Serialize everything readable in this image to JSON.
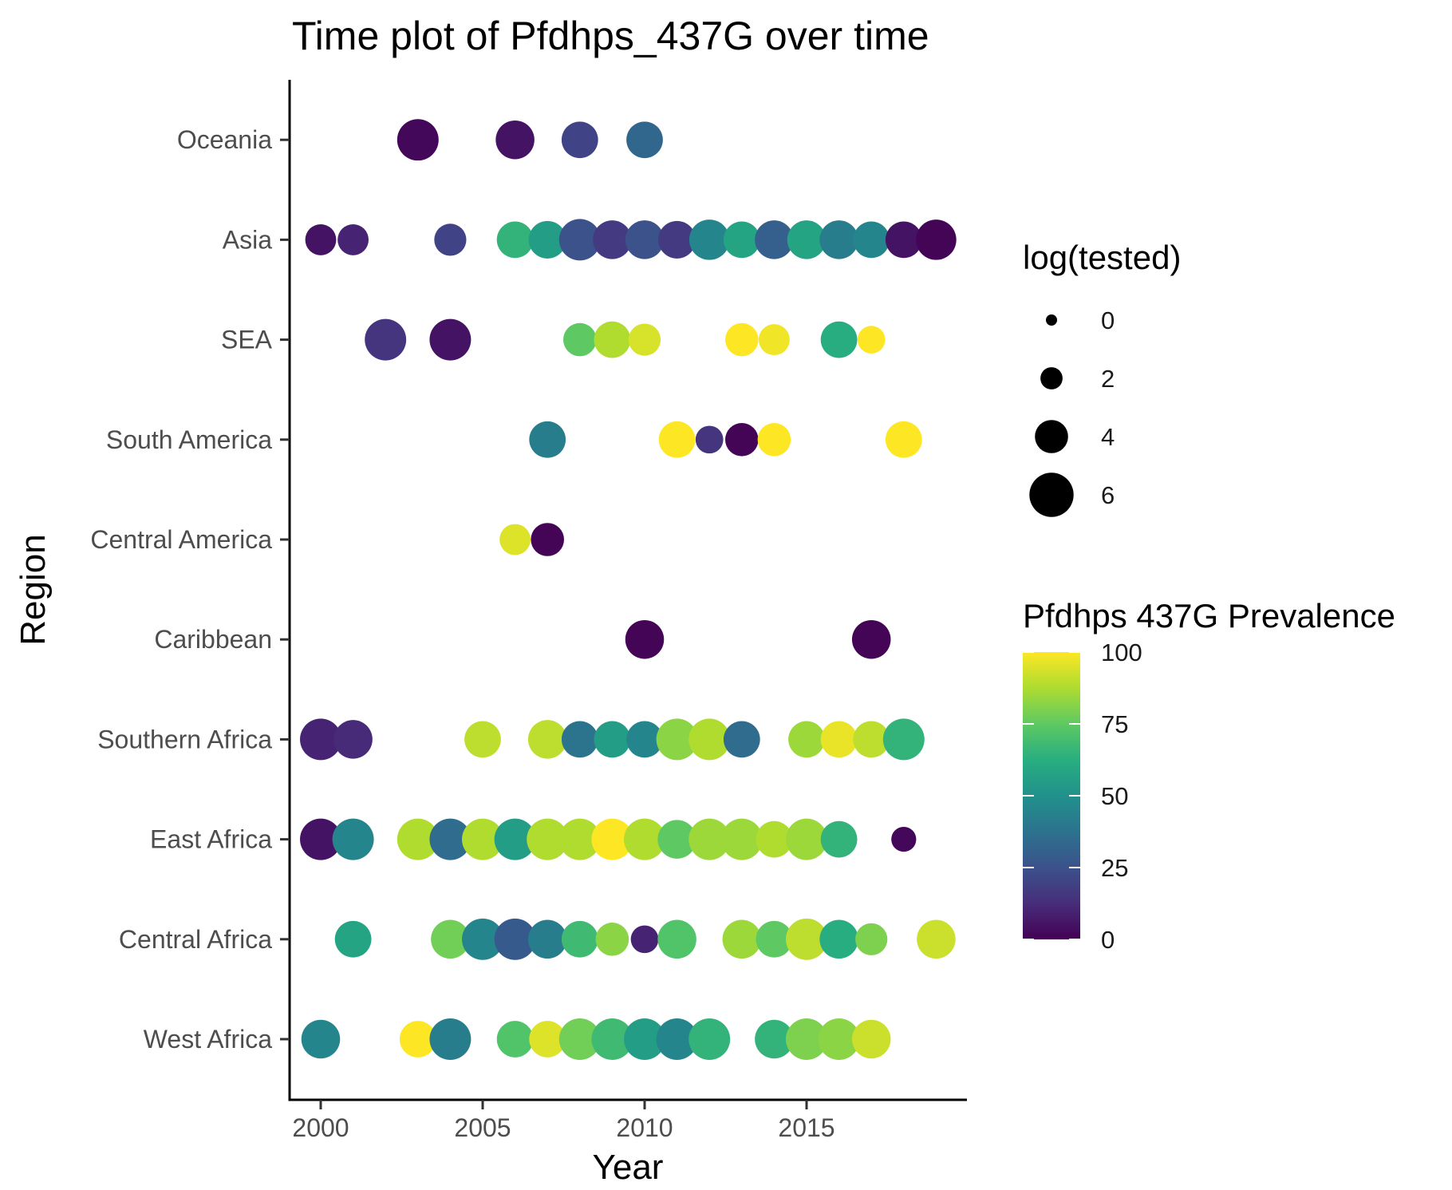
{
  "chart_data": {
    "type": "scatter",
    "title": "Time plot of Pfdhps_437G over time",
    "xlabel": "Year",
    "ylabel": "Region",
    "xlim": [
      1999,
      2020
    ],
    "x_ticks": [
      2000,
      2005,
      2010,
      2015
    ],
    "x_tick_labels": [
      "2000",
      "2005",
      "2010",
      "2015"
    ],
    "grid": false,
    "categories": [
      "West Africa",
      "Central Africa",
      "East Africa",
      "Southern Africa",
      "Caribbean",
      "Central America",
      "South America",
      "SEA",
      "Asia",
      "Oceania"
    ],
    "size_legend": {
      "title": "log(tested)",
      "position": "right",
      "breaks": [
        0,
        2,
        4,
        6
      ],
      "labels": [
        "0",
        "2",
        "4",
        "6"
      ]
    },
    "color_legend": {
      "title": "Pfdhps 437G Prevalence",
      "position": "right",
      "scale": "viridis",
      "limits": [
        0,
        100
      ],
      "breaks": [
        0,
        25,
        50,
        75,
        100
      ],
      "labels": [
        "0",
        "25",
        "50",
        "75",
        "100"
      ]
    },
    "points": [
      {
        "region": "Oceania",
        "year": 2003,
        "prevalence": 2,
        "log_tested": 5.5
      },
      {
        "region": "Oceania",
        "year": 2006,
        "prevalence": 5,
        "log_tested": 5.0
      },
      {
        "region": "Oceania",
        "year": 2008,
        "prevalence": 20,
        "log_tested": 4.6
      },
      {
        "region": "Oceania",
        "year": 2010,
        "prevalence": 33,
        "log_tested": 4.6
      },
      {
        "region": "Asia",
        "year": 2000,
        "prevalence": 5,
        "log_tested": 3.6
      },
      {
        "region": "Asia",
        "year": 2001,
        "prevalence": 10,
        "log_tested": 3.6
      },
      {
        "region": "Asia",
        "year": 2004,
        "prevalence": 20,
        "log_tested": 3.8
      },
      {
        "region": "Asia",
        "year": 2006,
        "prevalence": 65,
        "log_tested": 4.6
      },
      {
        "region": "Asia",
        "year": 2007,
        "prevalence": 55,
        "log_tested": 4.8
      },
      {
        "region": "Asia",
        "year": 2008,
        "prevalence": 25,
        "log_tested": 5.5
      },
      {
        "region": "Asia",
        "year": 2009,
        "prevalence": 17,
        "log_tested": 5.0
      },
      {
        "region": "Asia",
        "year": 2010,
        "prevalence": 25,
        "log_tested": 5.0
      },
      {
        "region": "Asia",
        "year": 2011,
        "prevalence": 17,
        "log_tested": 4.8
      },
      {
        "region": "Asia",
        "year": 2012,
        "prevalence": 45,
        "log_tested": 5.3
      },
      {
        "region": "Asia",
        "year": 2013,
        "prevalence": 58,
        "log_tested": 4.6
      },
      {
        "region": "Asia",
        "year": 2014,
        "prevalence": 30,
        "log_tested": 5.0
      },
      {
        "region": "Asia",
        "year": 2015,
        "prevalence": 58,
        "log_tested": 5.0
      },
      {
        "region": "Asia",
        "year": 2016,
        "prevalence": 42,
        "log_tested": 5.0
      },
      {
        "region": "Asia",
        "year": 2017,
        "prevalence": 45,
        "log_tested": 4.6
      },
      {
        "region": "Asia",
        "year": 2018,
        "prevalence": 5,
        "log_tested": 4.6
      },
      {
        "region": "Asia",
        "year": 2019,
        "prevalence": 1,
        "log_tested": 5.3
      },
      {
        "region": "SEA",
        "year": 2002,
        "prevalence": 15,
        "log_tested": 5.5
      },
      {
        "region": "SEA",
        "year": 2004,
        "prevalence": 5,
        "log_tested": 5.5
      },
      {
        "region": "SEA",
        "year": 2008,
        "prevalence": 75,
        "log_tested": 4.0
      },
      {
        "region": "SEA",
        "year": 2009,
        "prevalence": 88,
        "log_tested": 4.6
      },
      {
        "region": "SEA",
        "year": 2010,
        "prevalence": 94,
        "log_tested": 3.8
      },
      {
        "region": "SEA",
        "year": 2013,
        "prevalence": 100,
        "log_tested": 4.0
      },
      {
        "region": "SEA",
        "year": 2014,
        "prevalence": 98,
        "log_tested": 3.6
      },
      {
        "region": "SEA",
        "year": 2016,
        "prevalence": 62,
        "log_tested": 4.6
      },
      {
        "region": "SEA",
        "year": 2017,
        "prevalence": 100,
        "log_tested": 3.0
      },
      {
        "region": "South America",
        "year": 2007,
        "prevalence": 42,
        "log_tested": 4.6
      },
      {
        "region": "South America",
        "year": 2011,
        "prevalence": 100,
        "log_tested": 4.6
      },
      {
        "region": "South America",
        "year": 2012,
        "prevalence": 15,
        "log_tested": 3.0
      },
      {
        "region": "South America",
        "year": 2013,
        "prevalence": 1,
        "log_tested": 4.0
      },
      {
        "region": "South America",
        "year": 2014,
        "prevalence": 100,
        "log_tested": 4.0
      },
      {
        "region": "South America",
        "year": 2018,
        "prevalence": 100,
        "log_tested": 4.6
      },
      {
        "region": "Central America",
        "year": 2006,
        "prevalence": 95,
        "log_tested": 3.6
      },
      {
        "region": "Central America",
        "year": 2007,
        "prevalence": 1,
        "log_tested": 4.0
      },
      {
        "region": "Caribbean",
        "year": 2010,
        "prevalence": 1,
        "log_tested": 5.0
      },
      {
        "region": "Caribbean",
        "year": 2017,
        "prevalence": 1,
        "log_tested": 5.0
      },
      {
        "region": "Southern Africa",
        "year": 2000,
        "prevalence": 10,
        "log_tested": 5.5
      },
      {
        "region": "Southern Africa",
        "year": 2001,
        "prevalence": 12,
        "log_tested": 5.0
      },
      {
        "region": "Southern Africa",
        "year": 2005,
        "prevalence": 90,
        "log_tested": 4.6
      },
      {
        "region": "Southern Africa",
        "year": 2007,
        "prevalence": 90,
        "log_tested": 5.0
      },
      {
        "region": "Southern Africa",
        "year": 2008,
        "prevalence": 38,
        "log_tested": 4.6
      },
      {
        "region": "Southern Africa",
        "year": 2009,
        "prevalence": 55,
        "log_tested": 4.6
      },
      {
        "region": "Southern Africa",
        "year": 2010,
        "prevalence": 45,
        "log_tested": 4.6
      },
      {
        "region": "Southern Africa",
        "year": 2011,
        "prevalence": 82,
        "log_tested": 5.5
      },
      {
        "region": "Southern Africa",
        "year": 2012,
        "prevalence": 88,
        "log_tested": 5.5
      },
      {
        "region": "Southern Africa",
        "year": 2013,
        "prevalence": 35,
        "log_tested": 4.6
      },
      {
        "region": "Southern Africa",
        "year": 2015,
        "prevalence": 85,
        "log_tested": 4.6
      },
      {
        "region": "Southern Africa",
        "year": 2016,
        "prevalence": 97,
        "log_tested": 4.6
      },
      {
        "region": "Southern Africa",
        "year": 2017,
        "prevalence": 90,
        "log_tested": 4.6
      },
      {
        "region": "Southern Africa",
        "year": 2018,
        "prevalence": 65,
        "log_tested": 5.5
      },
      {
        "region": "East Africa",
        "year": 2000,
        "prevalence": 5,
        "log_tested": 5.5
      },
      {
        "region": "East Africa",
        "year": 2001,
        "prevalence": 45,
        "log_tested": 5.5
      },
      {
        "region": "East Africa",
        "year": 2003,
        "prevalence": 88,
        "log_tested": 5.5
      },
      {
        "region": "East Africa",
        "year": 2004,
        "prevalence": 35,
        "log_tested": 5.5
      },
      {
        "region": "East Africa",
        "year": 2005,
        "prevalence": 88,
        "log_tested": 5.5
      },
      {
        "region": "East Africa",
        "year": 2006,
        "prevalence": 55,
        "log_tested": 5.5
      },
      {
        "region": "East Africa",
        "year": 2007,
        "prevalence": 88,
        "log_tested": 5.5
      },
      {
        "region": "East Africa",
        "year": 2008,
        "prevalence": 88,
        "log_tested": 5.5
      },
      {
        "region": "East Africa",
        "year": 2009,
        "prevalence": 100,
        "log_tested": 5.5
      },
      {
        "region": "East Africa",
        "year": 2010,
        "prevalence": 88,
        "log_tested": 5.5
      },
      {
        "region": "East Africa",
        "year": 2011,
        "prevalence": 75,
        "log_tested": 5.0
      },
      {
        "region": "East Africa",
        "year": 2012,
        "prevalence": 85,
        "log_tested": 5.5
      },
      {
        "region": "East Africa",
        "year": 2013,
        "prevalence": 85,
        "log_tested": 5.5
      },
      {
        "region": "East Africa",
        "year": 2014,
        "prevalence": 88,
        "log_tested": 4.6
      },
      {
        "region": "East Africa",
        "year": 2015,
        "prevalence": 85,
        "log_tested": 5.5
      },
      {
        "region": "East Africa",
        "year": 2016,
        "prevalence": 65,
        "log_tested": 4.6
      },
      {
        "region": "East Africa",
        "year": 2018,
        "prevalence": 2,
        "log_tested": 2.5
      },
      {
        "region": "Central Africa",
        "year": 2001,
        "prevalence": 58,
        "log_tested": 4.6
      },
      {
        "region": "Central Africa",
        "year": 2004,
        "prevalence": 78,
        "log_tested": 5.0
      },
      {
        "region": "Central Africa",
        "year": 2005,
        "prevalence": 45,
        "log_tested": 5.5
      },
      {
        "region": "Central Africa",
        "year": 2006,
        "prevalence": 28,
        "log_tested": 5.5
      },
      {
        "region": "Central Africa",
        "year": 2007,
        "prevalence": 42,
        "log_tested": 5.0
      },
      {
        "region": "Central Africa",
        "year": 2008,
        "prevalence": 68,
        "log_tested": 4.6
      },
      {
        "region": "Central Africa",
        "year": 2009,
        "prevalence": 82,
        "log_tested": 4.0
      },
      {
        "region": "Central Africa",
        "year": 2010,
        "prevalence": 10,
        "log_tested": 3.0
      },
      {
        "region": "Central Africa",
        "year": 2011,
        "prevalence": 72,
        "log_tested": 5.0
      },
      {
        "region": "Central Africa",
        "year": 2013,
        "prevalence": 85,
        "log_tested": 5.0
      },
      {
        "region": "Central Africa",
        "year": 2014,
        "prevalence": 75,
        "log_tested": 4.6
      },
      {
        "region": "Central Africa",
        "year": 2015,
        "prevalence": 90,
        "log_tested": 5.5
      },
      {
        "region": "Central Africa",
        "year": 2016,
        "prevalence": 62,
        "log_tested": 5.0
      },
      {
        "region": "Central Africa",
        "year": 2017,
        "prevalence": 80,
        "log_tested": 3.8
      },
      {
        "region": "Central Africa",
        "year": 2019,
        "prevalence": 92,
        "log_tested": 5.0
      },
      {
        "region": "West Africa",
        "year": 2000,
        "prevalence": 45,
        "log_tested": 5.0
      },
      {
        "region": "West Africa",
        "year": 2003,
        "prevalence": 100,
        "log_tested": 4.6
      },
      {
        "region": "West Africa",
        "year": 2004,
        "prevalence": 42,
        "log_tested": 5.5
      },
      {
        "region": "West Africa",
        "year": 2006,
        "prevalence": 72,
        "log_tested": 4.6
      },
      {
        "region": "West Africa",
        "year": 2007,
        "prevalence": 95,
        "log_tested": 4.6
      },
      {
        "region": "West Africa",
        "year": 2008,
        "prevalence": 78,
        "log_tested": 5.5
      },
      {
        "region": "West Africa",
        "year": 2009,
        "prevalence": 68,
        "log_tested": 5.5
      },
      {
        "region": "West Africa",
        "year": 2010,
        "prevalence": 55,
        "log_tested": 5.5
      },
      {
        "region": "West Africa",
        "year": 2011,
        "prevalence": 45,
        "log_tested": 5.5
      },
      {
        "region": "West Africa",
        "year": 2012,
        "prevalence": 65,
        "log_tested": 5.5
      },
      {
        "region": "West Africa",
        "year": 2014,
        "prevalence": 65,
        "log_tested": 5.0
      },
      {
        "region": "West Africa",
        "year": 2015,
        "prevalence": 80,
        "log_tested": 5.5
      },
      {
        "region": "West Africa",
        "year": 2016,
        "prevalence": 82,
        "log_tested": 5.5
      },
      {
        "region": "West Africa",
        "year": 2017,
        "prevalence": 92,
        "log_tested": 5.0
      }
    ]
  }
}
